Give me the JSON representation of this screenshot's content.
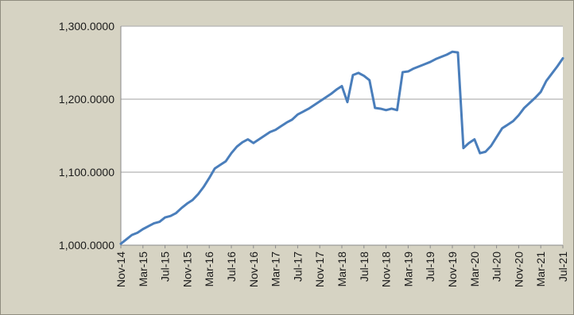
{
  "chart_data": {
    "type": "line",
    "title": "",
    "xlabel": "",
    "ylabel": "",
    "ylim": [
      1000,
      1300
    ],
    "y_ticks": [
      {
        "value": 1000,
        "label": "1,000.0000"
      },
      {
        "value": 1100,
        "label": "1,100.0000"
      },
      {
        "value": 1200,
        "label": "1,200.0000"
      },
      {
        "value": 1300,
        "label": "1,300.0000"
      }
    ],
    "x_tick_labels": [
      "Nov-14",
      "Mar-15",
      "Jul-15",
      "Nov-15",
      "Mar-16",
      "Jul-16",
      "Nov-16",
      "Mar-17",
      "Jul-17",
      "Nov-17",
      "Mar-18",
      "Jul-18",
      "Nov-18",
      "Mar-19",
      "Jul-19",
      "Nov-19",
      "Mar-20",
      "Jul-20",
      "Nov-20",
      "Mar-21",
      "Jul-21"
    ],
    "grid": true,
    "legend": "none",
    "series": [
      {
        "color": "#4a7ebb",
        "x": [
          "Nov-14",
          "Dec-14",
          "Jan-15",
          "Feb-15",
          "Mar-15",
          "Apr-15",
          "May-15",
          "Jun-15",
          "Jul-15",
          "Aug-15",
          "Sep-15",
          "Oct-15",
          "Nov-15",
          "Dec-15",
          "Jan-16",
          "Feb-16",
          "Mar-16",
          "Apr-16",
          "May-16",
          "Jun-16",
          "Jul-16",
          "Aug-16",
          "Sep-16",
          "Oct-16",
          "Nov-16",
          "Dec-16",
          "Jan-17",
          "Feb-17",
          "Mar-17",
          "Apr-17",
          "May-17",
          "Jun-17",
          "Jul-17",
          "Aug-17",
          "Sep-17",
          "Oct-17",
          "Nov-17",
          "Dec-17",
          "Jan-18",
          "Feb-18",
          "Mar-18",
          "Apr-18",
          "May-18",
          "Jun-18",
          "Jul-18",
          "Aug-18",
          "Sep-18",
          "Oct-18",
          "Nov-18",
          "Dec-18",
          "Jan-19",
          "Feb-19",
          "Mar-19",
          "Apr-19",
          "May-19",
          "Jun-19",
          "Jul-19",
          "Aug-19",
          "Sep-19",
          "Oct-19",
          "Nov-19",
          "Dec-19",
          "Jan-20",
          "Feb-20",
          "Mar-20",
          "Apr-20",
          "May-20",
          "Jun-20",
          "Jul-20",
          "Aug-20",
          "Sep-20",
          "Oct-20",
          "Nov-20",
          "Dec-20",
          "Jan-21",
          "Feb-21",
          "Mar-21",
          "Apr-21",
          "May-21",
          "Jun-21",
          "Jul-21"
        ],
        "values": [
          1002,
          1008,
          1014,
          1017,
          1022,
          1026,
          1030,
          1032,
          1038,
          1040,
          1044,
          1051,
          1057,
          1062,
          1070,
          1080,
          1092,
          1105,
          1110,
          1115,
          1126,
          1135,
          1141,
          1145,
          1140,
          1145,
          1150,
          1155,
          1158,
          1163,
          1168,
          1172,
          1179,
          1183,
          1187,
          1192,
          1197,
          1202,
          1207,
          1213,
          1218,
          1196,
          1233,
          1236,
          1232,
          1226,
          1188,
          1187,
          1185,
          1187,
          1185,
          1237,
          1238,
          1242,
          1245,
          1248,
          1251,
          1255,
          1258,
          1261,
          1265,
          1264,
          1133,
          1140,
          1145,
          1126,
          1128,
          1136,
          1148,
          1160,
          1165,
          1170,
          1178,
          1188,
          1195,
          1202,
          1210,
          1225,
          1235,
          1245,
          1256
        ]
      }
    ]
  }
}
